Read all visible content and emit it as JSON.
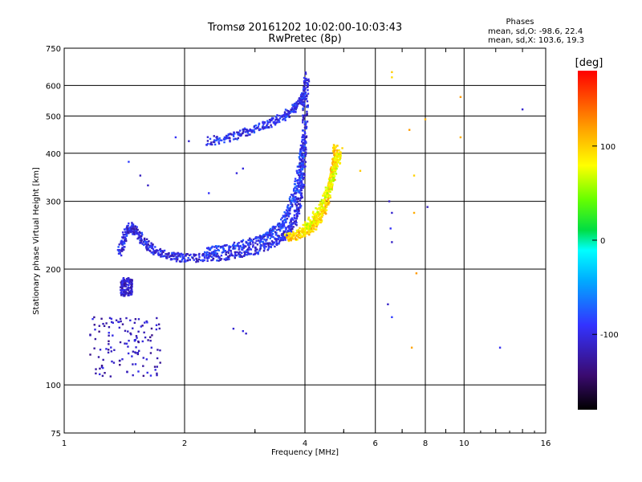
{
  "chart_data": {
    "type": "scatter",
    "title": "Tromsø 20161202 10:02:00-10:03:43",
    "subtitle": "RwPretec (8p)",
    "xlabel": "Frequency [MHz]",
    "ylabel": "Stationary phase Virtual Height [km]",
    "xscale": "log",
    "yscale": "log",
    "xlim": [
      1,
      16
    ],
    "ylim": [
      75,
      750
    ],
    "x_ticks": [
      1,
      2,
      4,
      6,
      8,
      10,
      16
    ],
    "x_tick_labels": [
      "1",
      "2",
      "4",
      "6",
      "8",
      "10",
      "16"
    ],
    "y_ticks": [
      75,
      100,
      200,
      300,
      400,
      500,
      600,
      750
    ],
    "y_tick_labels": [
      "75",
      "100",
      "200",
      "300",
      "400",
      "500",
      "600",
      "750"
    ],
    "grid": true,
    "phases_header": "Phases",
    "phases_o": "mean, sd,O: -98.6, 22.4",
    "phases_x": "mean, sd,X: 103.6, 19.3",
    "colorbar": {
      "label": "[deg]",
      "range": [
        -180,
        180
      ],
      "ticks": [
        100,
        0,
        -100
      ],
      "tick_labels": [
        "100",
        "0",
        "-100"
      ]
    },
    "series": [
      {
        "name": "O-mode main trace",
        "type": "curve",
        "phase": -100,
        "points": [
          [
            1.38,
            220
          ],
          [
            1.42,
            245
          ],
          [
            1.46,
            258
          ],
          [
            1.52,
            250
          ],
          [
            1.6,
            232
          ],
          [
            1.7,
            222
          ],
          [
            1.85,
            216
          ],
          [
            2.0,
            214
          ],
          [
            2.25,
            214
          ],
          [
            2.5,
            216
          ],
          [
            2.8,
            220
          ],
          [
            3.1,
            226
          ],
          [
            3.4,
            236
          ],
          [
            3.6,
            248
          ],
          [
            3.75,
            265
          ],
          [
            3.85,
            290
          ],
          [
            3.92,
            330
          ],
          [
            3.96,
            380
          ],
          [
            3.99,
            450
          ],
          [
            4.02,
            560
          ],
          [
            4.04,
            640
          ]
        ]
      },
      {
        "name": "O-mode upper branch",
        "type": "curve",
        "phase": -90,
        "points": [
          [
            2.25,
            222
          ],
          [
            2.5,
            226
          ],
          [
            2.8,
            232
          ],
          [
            3.1,
            238
          ],
          [
            3.3,
            248
          ],
          [
            3.5,
            262
          ],
          [
            3.65,
            285
          ],
          [
            3.8,
            320
          ],
          [
            3.9,
            370
          ],
          [
            3.96,
            430
          ]
        ]
      },
      {
        "name": "O-mode 2-hop echo",
        "type": "curve",
        "phase": -95,
        "points": [
          [
            2.3,
            430
          ],
          [
            2.6,
            440
          ],
          [
            2.9,
            455
          ],
          [
            3.2,
            475
          ],
          [
            3.5,
            495
          ],
          [
            3.75,
            520
          ],
          [
            3.9,
            545
          ],
          [
            4.0,
            570
          ]
        ]
      },
      {
        "name": "X-mode trace",
        "type": "curve",
        "phase": 100,
        "points": [
          [
            3.6,
            242
          ],
          [
            3.8,
            244
          ],
          [
            4.0,
            250
          ],
          [
            4.2,
            258
          ],
          [
            4.35,
            270
          ],
          [
            4.5,
            290
          ],
          [
            4.6,
            320
          ],
          [
            4.7,
            355
          ],
          [
            4.75,
            390
          ],
          [
            4.78,
            420
          ]
        ]
      },
      {
        "name": "X-mode lower spread",
        "type": "curve",
        "phase": 80,
        "points": [
          [
            3.9,
            250
          ],
          [
            4.1,
            262
          ],
          [
            4.3,
            280
          ],
          [
            4.5,
            305
          ],
          [
            4.65,
            340
          ],
          [
            4.8,
            380
          ],
          [
            4.9,
            405
          ]
        ]
      },
      {
        "name": "Low-frequency spread F",
        "type": "cluster",
        "phase": -115,
        "bounds": {
          "x": [
            1.15,
            1.75
          ],
          "y": [
            105,
            150
          ]
        }
      },
      {
        "name": "Low-frequency spur",
        "type": "cluster",
        "phase": -110,
        "bounds": {
          "x": [
            1.38,
            1.48
          ],
          "y": [
            170,
            190
          ]
        }
      },
      {
        "name": "Isolated echoes",
        "type": "points",
        "phase": -100,
        "points": [
          [
            1.45,
            380
          ],
          [
            1.55,
            350
          ],
          [
            1.62,
            330
          ],
          [
            1.9,
            440
          ],
          [
            2.05,
            430
          ],
          [
            2.7,
            355
          ],
          [
            2.8,
            365
          ],
          [
            2.3,
            315
          ],
          [
            2.65,
            140
          ],
          [
            2.8,
            138
          ],
          [
            2.85,
            136
          ],
          [
            6.5,
            300
          ],
          [
            6.6,
            280
          ],
          [
            6.55,
            255
          ],
          [
            6.6,
            235
          ],
          [
            6.45,
            162
          ],
          [
            6.6,
            150
          ],
          [
            8.1,
            290
          ],
          [
            12.3,
            125
          ],
          [
            14,
            520
          ],
          [
            16,
            97
          ]
        ]
      },
      {
        "name": "Isolated X echoes",
        "type": "points",
        "phase": 110,
        "points": [
          [
            6.6,
            650
          ],
          [
            6.6,
            630
          ],
          [
            7.3,
            460
          ],
          [
            7.5,
            350
          ],
          [
            7.5,
            280
          ],
          [
            8.0,
            490
          ],
          [
            9.8,
            560
          ],
          [
            9.8,
            440
          ],
          [
            7.4,
            125
          ],
          [
            7.6,
            195
          ],
          [
            5.5,
            360
          ]
        ]
      }
    ]
  }
}
